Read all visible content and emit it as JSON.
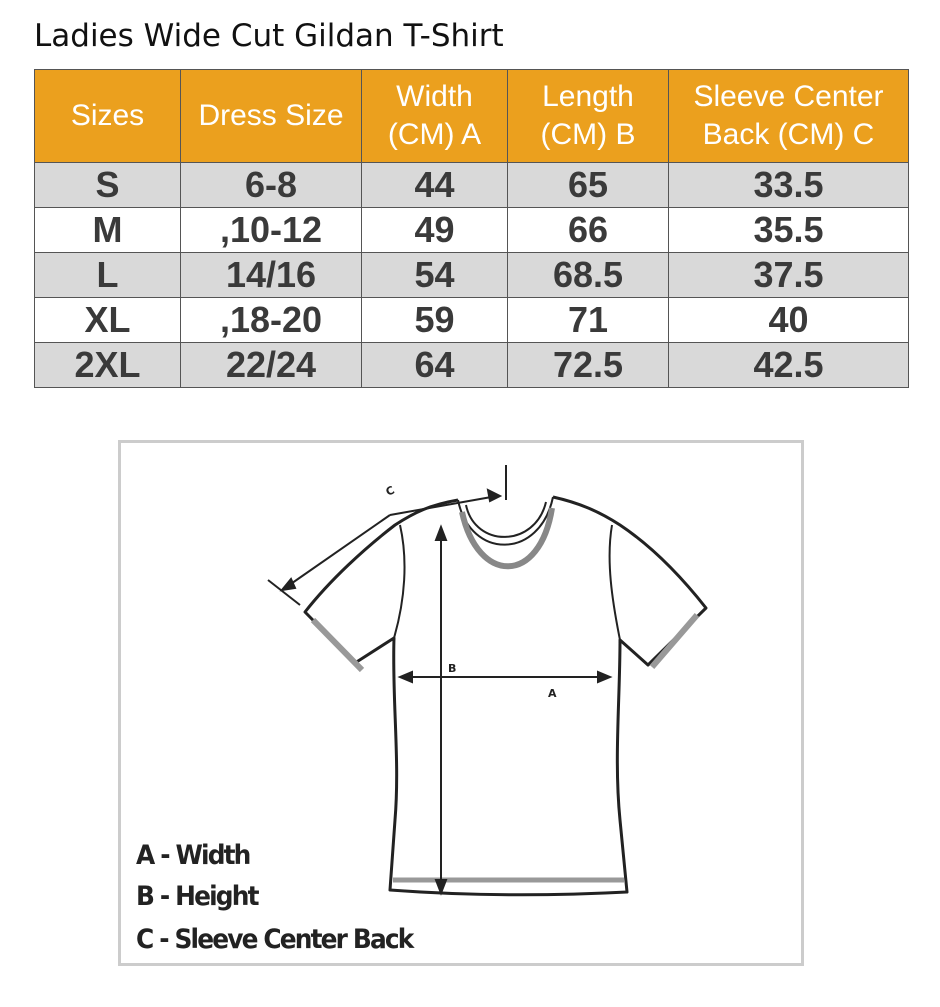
{
  "title": "Ladies Wide Cut Gildan T-Shirt",
  "table": {
    "headers": [
      "Sizes",
      "Dress Size",
      "Width (CM) A",
      "Length (CM) B",
      "Sleeve Center Back (CM) C"
    ],
    "header_color": "#EBA01E",
    "rows": [
      [
        "S",
        "6-8",
        "44",
        "65",
        "33.5"
      ],
      [
        "M",
        ",10-12",
        "49",
        "66",
        "35.5"
      ],
      [
        "L",
        "14/16",
        "54",
        "68.5",
        "37.5"
      ],
      [
        "XL",
        ",18-20",
        "59",
        "71",
        "40"
      ],
      [
        "2XL",
        "22/24",
        "64",
        "72.5",
        "42.5"
      ]
    ]
  },
  "diagram": {
    "labels": {
      "a": "A",
      "b": "B",
      "c": "C"
    },
    "legend": [
      "A - Width",
      "B - Height",
      "C - Sleeve Center Back"
    ]
  }
}
